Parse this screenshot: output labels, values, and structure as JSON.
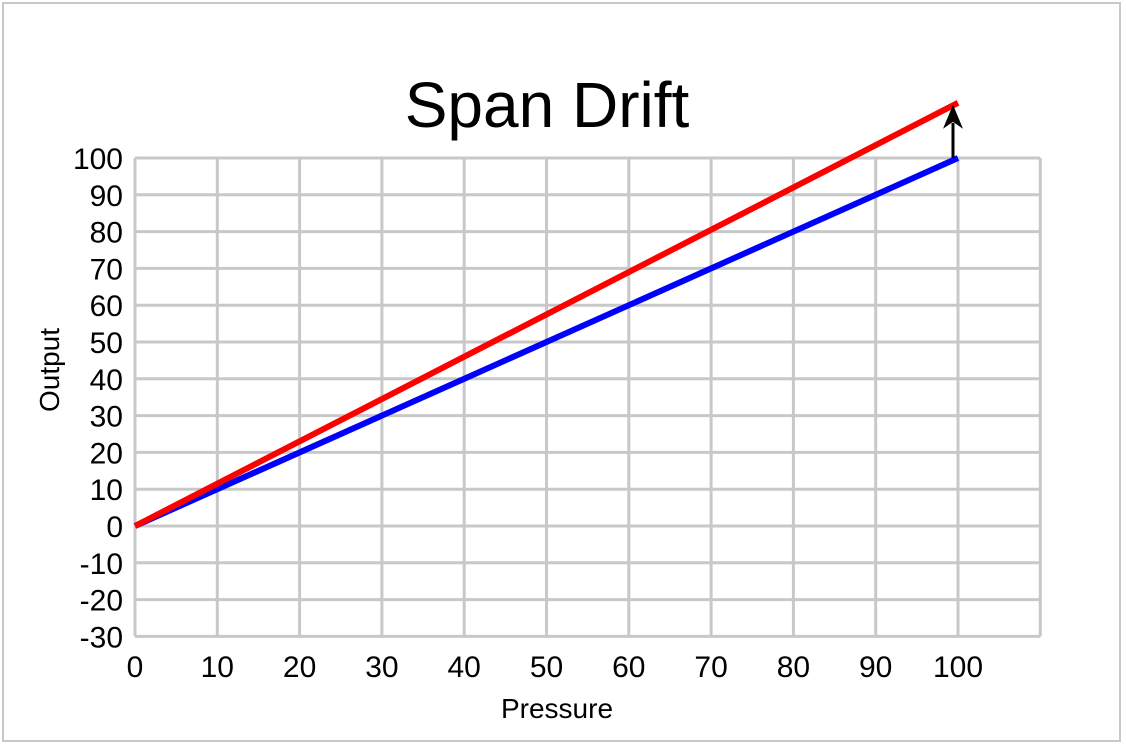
{
  "chart_data": {
    "type": "line",
    "title": "Span Drift",
    "xlabel": "Pressure",
    "ylabel": "Output",
    "xlim": [
      0,
      110
    ],
    "ylim": [
      -30,
      100
    ],
    "x_ticks": [
      0,
      10,
      20,
      30,
      40,
      50,
      60,
      70,
      80,
      90,
      100
    ],
    "y_ticks": [
      100,
      90,
      80,
      70,
      60,
      50,
      40,
      30,
      20,
      10,
      0,
      -10,
      -20,
      -30
    ],
    "grid": true,
    "series": [
      {
        "color": "#0000ff",
        "x": [
          0,
          100
        ],
        "y": [
          0,
          100
        ]
      },
      {
        "color": "#ff0000",
        "x": [
          0,
          100
        ],
        "y": [
          0,
          115
        ]
      }
    ],
    "annotations": [
      {
        "type": "arrow",
        "color": "#000000",
        "x": 100,
        "from_y": 100,
        "to_y": 115
      }
    ]
  }
}
